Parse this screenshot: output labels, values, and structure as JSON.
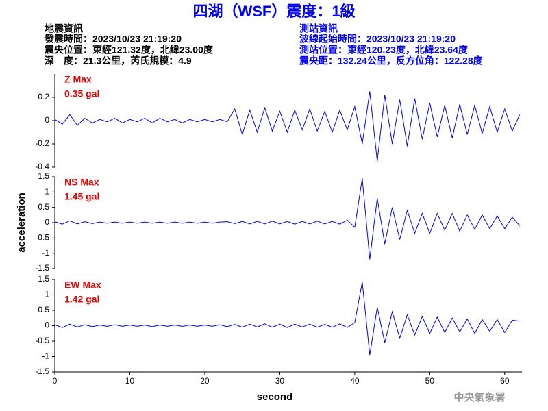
{
  "header": {
    "title": "四湖（WSF）震度：1級",
    "left": [
      "地震資訊",
      "發震時間：2023/10/23 21:19:20",
      "震央位置：東經121.32度，北緯23.00度",
      "深　度：21.3公里，芮氏規模：4.9"
    ],
    "right": [
      "測站資訊",
      "波線起始時間：2023/10/23 21:19:20",
      "測站位置：東經120.23度，北緯23.64度",
      "震央距：132.24公里，反方位角：122.28度"
    ]
  },
  "footer": "中央氣象署",
  "chart_data": [
    {
      "type": "line",
      "label": "Z Max",
      "max_label": "0.35 gal",
      "color": "#0000ff",
      "x": [
        0,
        1,
        2,
        3,
        4,
        5,
        6,
        7,
        8,
        9,
        10,
        11,
        12,
        13,
        14,
        15,
        16,
        17,
        18,
        19,
        20,
        21,
        22,
        23,
        24,
        25,
        26,
        27,
        28,
        29,
        30,
        31,
        32,
        33,
        34,
        35,
        36,
        37,
        38,
        39,
        40,
        41,
        42,
        43,
        44,
        45,
        46,
        47,
        48,
        49,
        50,
        51,
        52,
        53,
        54,
        55,
        56,
        57,
        58,
        59,
        60,
        61,
        62
      ],
      "values": [
        0.01,
        -0.03,
        0.05,
        -0.04,
        0.02,
        -0.02,
        0.01,
        -0.01,
        0.02,
        -0.02,
        0.01,
        -0.01,
        0.02,
        -0.02,
        0.02,
        -0.01,
        0.01,
        -0.02,
        0.01,
        -0.01,
        0.01,
        -0.01,
        0.01,
        -0.01,
        0.1,
        -0.12,
        0.09,
        -0.1,
        0.11,
        -0.09,
        0.08,
        -0.1,
        0.09,
        -0.08,
        0.1,
        -0.09,
        0.08,
        -0.1,
        0.09,
        -0.08,
        0.12,
        -0.2,
        0.25,
        -0.35,
        0.22,
        -0.2,
        0.18,
        -0.22,
        0.19,
        -0.16,
        0.15,
        -0.14,
        0.13,
        -0.15,
        0.14,
        -0.12,
        0.13,
        -0.11,
        0.12,
        -0.1,
        0.1,
        -0.09,
        0.05
      ],
      "xlim": [
        0,
        62.3
      ],
      "ylim": [
        -0.4,
        0.4
      ],
      "yticks": [
        -0.4,
        -0.2,
        0,
        0.2
      ]
    },
    {
      "type": "line",
      "label": "NS Max",
      "max_label": "1.45 gal",
      "color": "#0000ff",
      "ylabel": "acceleration",
      "x": [
        0,
        1,
        2,
        3,
        4,
        5,
        6,
        7,
        8,
        9,
        10,
        11,
        12,
        13,
        14,
        15,
        16,
        17,
        18,
        19,
        20,
        21,
        22,
        23,
        24,
        25,
        26,
        27,
        28,
        29,
        30,
        31,
        32,
        33,
        34,
        35,
        36,
        37,
        38,
        39,
        40,
        41,
        42,
        43,
        44,
        45,
        46,
        47,
        48,
        49,
        50,
        51,
        52,
        53,
        54,
        55,
        56,
        57,
        58,
        59,
        60,
        61,
        62
      ],
      "values": [
        0.03,
        -0.05,
        0.06,
        -0.04,
        0.03,
        -0.03,
        0.02,
        -0.02,
        0.02,
        -0.02,
        0.02,
        -0.02,
        0.02,
        -0.02,
        0.02,
        -0.02,
        0.02,
        -0.02,
        0.02,
        -0.02,
        0.02,
        -0.02,
        0.02,
        0.03,
        -0.03,
        0.04,
        -0.04,
        0.04,
        -0.04,
        0.05,
        -0.04,
        0.04,
        -0.05,
        0.04,
        -0.04,
        0.05,
        -0.04,
        0.04,
        -0.05,
        0.08,
        -0.15,
        1.45,
        -1.2,
        0.8,
        -0.7,
        0.5,
        -0.55,
        0.4,
        -0.35,
        0.3,
        -0.35,
        0.3,
        -0.25,
        0.3,
        -0.28,
        0.25,
        -0.22,
        0.25,
        -0.2,
        0.22,
        -0.2,
        0.18,
        -0.1
      ],
      "xlim": [
        0,
        62.3
      ],
      "ylim": [
        -1.5,
        1.5
      ],
      "yticks": [
        -1.5,
        -1,
        -0.5,
        0,
        0.5,
        1,
        1.5
      ]
    },
    {
      "type": "line",
      "label": "EW Max",
      "max_label": "1.42 gal",
      "color": "#0000ff",
      "xlabel": "second",
      "x": [
        0,
        1,
        2,
        3,
        4,
        5,
        6,
        7,
        8,
        9,
        10,
        11,
        12,
        13,
        14,
        15,
        16,
        17,
        18,
        19,
        20,
        21,
        22,
        23,
        24,
        25,
        26,
        27,
        28,
        29,
        30,
        31,
        32,
        33,
        34,
        35,
        36,
        37,
        38,
        39,
        40,
        41,
        42,
        43,
        44,
        45,
        46,
        47,
        48,
        49,
        50,
        51,
        52,
        53,
        54,
        55,
        56,
        57,
        58,
        59,
        60,
        61,
        62
      ],
      "values": [
        0.03,
        -0.06,
        0.05,
        -0.04,
        0.03,
        -0.03,
        0.02,
        -0.02,
        0.03,
        -0.02,
        0.02,
        -0.02,
        0.02,
        -0.03,
        0.02,
        -0.02,
        0.02,
        -0.02,
        0.02,
        -0.02,
        0.02,
        -0.02,
        0.03,
        -0.03,
        0.04,
        -0.05,
        0.05,
        -0.04,
        0.06,
        -0.05,
        0.05,
        -0.06,
        0.05,
        -0.04,
        0.05,
        -0.05,
        0.04,
        -0.05,
        0.06,
        -0.06,
        0.1,
        1.42,
        -0.95,
        0.6,
        -0.55,
        0.45,
        -0.4,
        0.35,
        -0.3,
        0.3,
        -0.25,
        0.28,
        -0.22,
        0.25,
        -0.2,
        0.22,
        -0.25,
        0.2,
        -0.18,
        0.2,
        -0.22,
        0.18,
        0.15
      ],
      "xlim": [
        0,
        62.3
      ],
      "ylim": [
        -1.5,
        1.5
      ],
      "yticks": [
        -1.5,
        -1,
        -0.5,
        0,
        0.5,
        1,
        1.5
      ],
      "xticks": [
        0,
        10,
        20,
        30,
        40,
        50,
        60
      ]
    }
  ]
}
